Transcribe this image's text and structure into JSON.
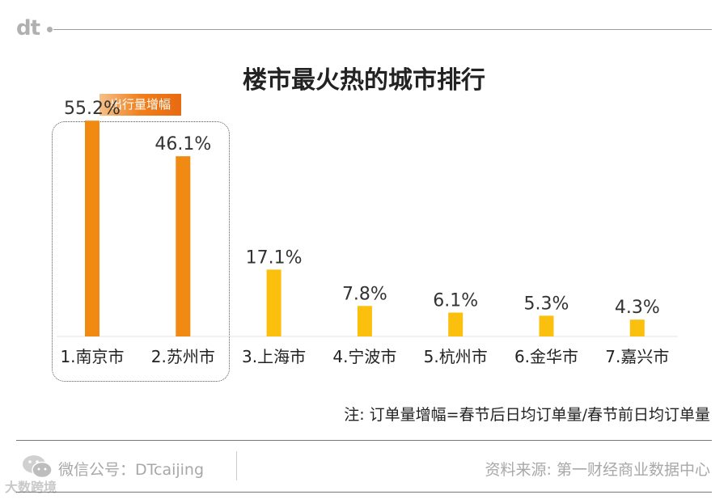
{
  "logo": {
    "text": "dt"
  },
  "chart_data": {
    "type": "bar",
    "title": "楼市最火热的城市排行",
    "highlight_label": "出行量增幅",
    "categories": [
      "1.南京市",
      "2.苏州市",
      "3.上海市",
      "4.宁波市",
      "5.杭州市",
      "6.金华市",
      "7.嘉兴市"
    ],
    "values": [
      55.2,
      46.1,
      17.1,
      7.8,
      6.1,
      5.3,
      4.3
    ],
    "data_labels": [
      "55.2%",
      "46.1%",
      "17.1%",
      "7.8%",
      "6.1%",
      "5.3%",
      "4.3%"
    ],
    "highlighted": [
      true,
      true,
      false,
      false,
      false,
      false,
      false
    ],
    "ylim": [
      0,
      60
    ],
    "xlabel": "",
    "ylabel": "",
    "grid": false,
    "legend": "none",
    "colors": {
      "highlight": "#f08a12",
      "normal": "#fbbf0e"
    }
  },
  "note": "注: 订单量增幅=春节后日均订单量/春节前日均订单量",
  "footer": {
    "wechat": "微信公号：DTcaijing",
    "source": "资料来源: 第一财经商业数据中心"
  },
  "watermark": "大数跨境"
}
